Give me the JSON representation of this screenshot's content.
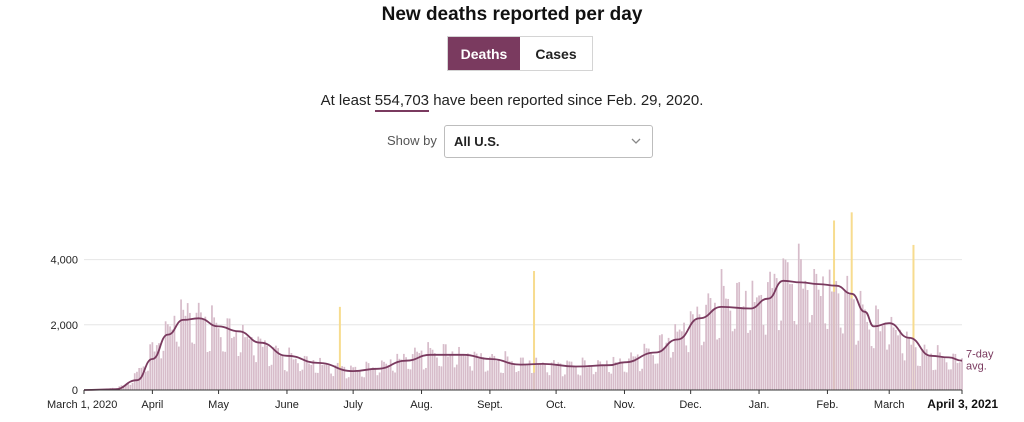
{
  "title": "New deaths reported per day",
  "toggle": {
    "deaths_label": "Deaths",
    "cases_label": "Cases",
    "active": "Deaths"
  },
  "summary": {
    "prefix": "At least",
    "value": "554,703",
    "suffix": "have been reported since Feb. 29, 2020."
  },
  "show_by": {
    "label": "Show by",
    "selected": "All U.S."
  },
  "chart_data": {
    "type": "bar",
    "title": "New deaths reported per day",
    "x_start": "2020-03-01",
    "x_end": "2021-04-03",
    "ylim": [
      0,
      5000
    ],
    "y_ticks": [
      0,
      2000,
      4000
    ],
    "y_tick_labels": [
      "0",
      "2,000",
      "4,000"
    ],
    "x_tick_labels": [
      {
        "date": "2020-03-01",
        "label": "March 1, 2020"
      },
      {
        "date": "2020-04-01",
        "label": "April"
      },
      {
        "date": "2020-05-01",
        "label": "May"
      },
      {
        "date": "2020-06-01",
        "label": "June"
      },
      {
        "date": "2020-07-01",
        "label": "July"
      },
      {
        "date": "2020-08-01",
        "label": "Aug."
      },
      {
        "date": "2020-09-01",
        "label": "Sept."
      },
      {
        "date": "2020-10-01",
        "label": "Oct."
      },
      {
        "date": "2020-11-01",
        "label": "Nov."
      },
      {
        "date": "2020-12-01",
        "label": "Dec."
      },
      {
        "date": "2021-01-01",
        "label": "Jan."
      },
      {
        "date": "2021-02-01",
        "label": "Feb."
      },
      {
        "date": "2021-03-01",
        "label": "March"
      },
      {
        "date": "2021-04-03",
        "label": "April 3, 2021",
        "bold": true
      }
    ],
    "daily_anchors": [
      [
        "2020-03-01",
        0
      ],
      [
        "2020-03-10",
        10
      ],
      [
        "2020-03-20",
        150
      ],
      [
        "2020-03-25",
        500
      ],
      [
        "2020-04-01",
        1200
      ],
      [
        "2020-04-08",
        1900
      ],
      [
        "2020-04-15",
        2400
      ],
      [
        "2020-04-21",
        2300
      ],
      [
        "2020-05-01",
        1900
      ],
      [
        "2020-05-15",
        1600
      ],
      [
        "2020-06-01",
        1000
      ],
      [
        "2020-06-15",
        820
      ],
      [
        "2020-07-01",
        620
      ],
      [
        "2020-07-10",
        700
      ],
      [
        "2020-08-01",
        1150
      ],
      [
        "2020-08-15",
        1150
      ],
      [
        "2020-09-01",
        950
      ],
      [
        "2020-09-15",
        850
      ],
      [
        "2020-10-01",
        780
      ],
      [
        "2020-10-15",
        760
      ],
      [
        "2020-11-01",
        880
      ],
      [
        "2020-11-15",
        1250
      ],
      [
        "2020-12-01",
        2100
      ],
      [
        "2020-12-15",
        2800
      ],
      [
        "2021-01-01",
        2800
      ],
      [
        "2021-01-12",
        3500
      ],
      [
        "2021-01-20",
        3400
      ],
      [
        "2021-02-01",
        3100
      ],
      [
        "2021-02-10",
        2900
      ],
      [
        "2021-02-20",
        2100
      ],
      [
        "2021-03-01",
        2000
      ],
      [
        "2021-03-15",
        1200
      ],
      [
        "2021-03-25",
        1000
      ],
      [
        "2021-04-03",
        900
      ]
    ],
    "spikes": [
      {
        "date": "2020-06-25",
        "value": 2550
      },
      {
        "date": "2020-09-21",
        "value": 3650
      },
      {
        "date": "2021-02-04",
        "value": 5200
      },
      {
        "date": "2021-02-12",
        "value": 5450
      },
      {
        "date": "2021-03-12",
        "value": 4450
      }
    ],
    "seven_day_avg": [
      [
        "2020-03-01",
        0
      ],
      [
        "2020-03-15",
        20
      ],
      [
        "2020-03-25",
        300
      ],
      [
        "2020-04-01",
        950
      ],
      [
        "2020-04-08",
        1700
      ],
      [
        "2020-04-15",
        2150
      ],
      [
        "2020-04-22",
        2200
      ],
      [
        "2020-05-01",
        1950
      ],
      [
        "2020-05-10",
        1800
      ],
      [
        "2020-05-20",
        1450
      ],
      [
        "2020-06-01",
        1050
      ],
      [
        "2020-06-15",
        830
      ],
      [
        "2020-07-01",
        580
      ],
      [
        "2020-07-12",
        650
      ],
      [
        "2020-07-25",
        900
      ],
      [
        "2020-08-05",
        1080
      ],
      [
        "2020-08-20",
        1080
      ],
      [
        "2020-09-01",
        950
      ],
      [
        "2020-09-15",
        780
      ],
      [
        "2020-09-25",
        800
      ],
      [
        "2020-10-10",
        720
      ],
      [
        "2020-10-25",
        760
      ],
      [
        "2020-11-01",
        850
      ],
      [
        "2020-11-15",
        1150
      ],
      [
        "2020-11-25",
        1550
      ],
      [
        "2020-12-05",
        2200
      ],
      [
        "2020-12-15",
        2550
      ],
      [
        "2020-12-28",
        2500
      ],
      [
        "2021-01-05",
        2800
      ],
      [
        "2021-01-12",
        3350
      ],
      [
        "2021-01-20",
        3300
      ],
      [
        "2021-01-28",
        3250
      ],
      [
        "2021-02-05",
        3200
      ],
      [
        "2021-02-12",
        2950
      ],
      [
        "2021-02-18",
        2400
      ],
      [
        "2021-02-22",
        1950
      ],
      [
        "2021-03-01",
        2050
      ],
      [
        "2021-03-10",
        1600
      ],
      [
        "2021-03-20",
        1050
      ],
      [
        "2021-03-28",
        1000
      ],
      [
        "2021-04-03",
        900
      ]
    ],
    "avg_label": [
      "7-day",
      "avg."
    ],
    "colors": {
      "bar": "#d7bcca",
      "bar_edge": "#b07f9c",
      "avg_line": "#7a3a5f",
      "spike": "#f7dc8f",
      "grid": "#e6e6e6",
      "axis": "#333333",
      "accent": "#7a3a5f"
    }
  }
}
